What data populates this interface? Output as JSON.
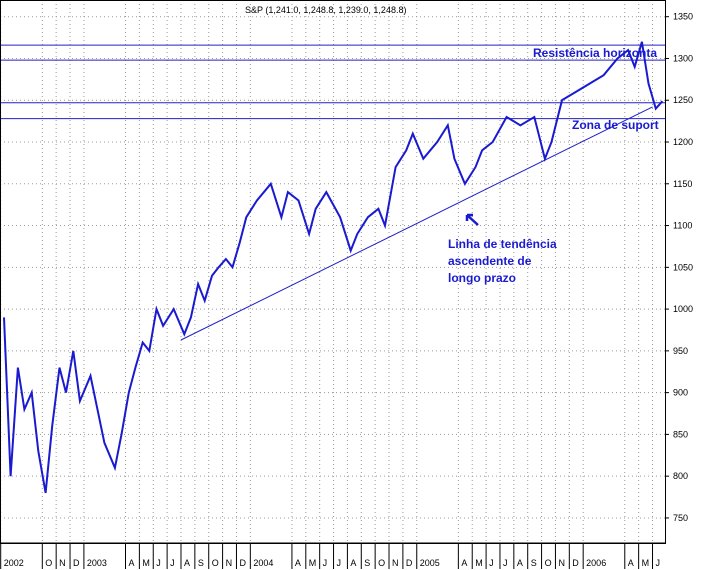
{
  "chart_data": {
    "type": "line",
    "title": "S&P (1,241.0, 1,248.8, 1,239.0, 1,248.8)",
    "ylim": [
      720,
      1370
    ],
    "y_ticks": [
      750,
      800,
      850,
      900,
      950,
      1000,
      1050,
      1100,
      1150,
      1200,
      1250,
      1300,
      1350
    ],
    "x_ticks": [
      {
        "label": "2002",
        "date": "2002-07"
      },
      {
        "label": "O",
        "date": "2002-10"
      },
      {
        "label": "N",
        "date": "2002-11"
      },
      {
        "label": "D",
        "date": "2002-12"
      },
      {
        "label": "2003",
        "date": "2003-01"
      },
      {
        "label": "A",
        "date": "2003-04"
      },
      {
        "label": "M",
        "date": "2003-05"
      },
      {
        "label": "J",
        "date": "2003-06"
      },
      {
        "label": "J",
        "date": "2003-07"
      },
      {
        "label": "A",
        "date": "2003-08"
      },
      {
        "label": "S",
        "date": "2003-09"
      },
      {
        "label": "O",
        "date": "2003-10"
      },
      {
        "label": "N",
        "date": "2003-11"
      },
      {
        "label": "D",
        "date": "2003-12"
      },
      {
        "label": "2004",
        "date": "2004-01"
      },
      {
        "label": "A",
        "date": "2004-04"
      },
      {
        "label": "M",
        "date": "2004-05"
      },
      {
        "label": "J",
        "date": "2004-06"
      },
      {
        "label": "J",
        "date": "2004-07"
      },
      {
        "label": "A",
        "date": "2004-08"
      },
      {
        "label": "S",
        "date": "2004-09"
      },
      {
        "label": "O",
        "date": "2004-10"
      },
      {
        "label": "N",
        "date": "2004-11"
      },
      {
        "label": "D",
        "date": "2004-12"
      },
      {
        "label": "2005",
        "date": "2005-01"
      },
      {
        "label": "A",
        "date": "2005-04"
      },
      {
        "label": "M",
        "date": "2005-05"
      },
      {
        "label": "J",
        "date": "2005-06"
      },
      {
        "label": "J",
        "date": "2005-07"
      },
      {
        "label": "A",
        "date": "2005-08"
      },
      {
        "label": "S",
        "date": "2005-09"
      },
      {
        "label": "O",
        "date": "2005-10"
      },
      {
        "label": "N",
        "date": "2005-11"
      },
      {
        "label": "D",
        "date": "2005-12"
      },
      {
        "label": "2006",
        "date": "2006-01"
      },
      {
        "label": "A",
        "date": "2006-04"
      },
      {
        "label": "M",
        "date": "2006-05"
      },
      {
        "label": "J",
        "date": "2006-06"
      }
    ],
    "series": [
      {
        "color": "#1a1ad0",
        "points": [
          [
            "2002-07",
            990
          ],
          [
            "2002-07",
            800
          ],
          [
            "2002-08",
            930
          ],
          [
            "2002-08",
            880
          ],
          [
            "2002-09",
            900
          ],
          [
            "2002-09",
            830
          ],
          [
            "2002-10",
            780
          ],
          [
            "2002-10",
            860
          ],
          [
            "2002-11",
            930
          ],
          [
            "2002-11",
            900
          ],
          [
            "2002-12",
            950
          ],
          [
            "2002-12",
            890
          ],
          [
            "2003-01",
            920
          ],
          [
            "2003-02",
            840
          ],
          [
            "2003-03",
            810
          ],
          [
            "2003-03",
            850
          ],
          [
            "2003-04",
            900
          ],
          [
            "2003-04",
            930
          ],
          [
            "2003-05",
            960
          ],
          [
            "2003-05",
            950
          ],
          [
            "2003-06",
            1000
          ],
          [
            "2003-06",
            980
          ],
          [
            "2003-07",
            1000
          ],
          [
            "2003-08",
            970
          ],
          [
            "2003-08",
            990
          ],
          [
            "2003-09",
            1030
          ],
          [
            "2003-09",
            1010
          ],
          [
            "2003-10",
            1040
          ],
          [
            "2003-10",
            1050
          ],
          [
            "2003-11",
            1060
          ],
          [
            "2003-11",
            1050
          ],
          [
            "2003-12",
            1080
          ],
          [
            "2003-12",
            1110
          ],
          [
            "2004-01",
            1130
          ],
          [
            "2004-02",
            1150
          ],
          [
            "2004-03",
            1110
          ],
          [
            "2004-03",
            1140
          ],
          [
            "2004-04",
            1130
          ],
          [
            "2004-05",
            1090
          ],
          [
            "2004-05",
            1120
          ],
          [
            "2004-06",
            1140
          ],
          [
            "2004-07",
            1110
          ],
          [
            "2004-08",
            1070
          ],
          [
            "2004-08",
            1090
          ],
          [
            "2004-09",
            1110
          ],
          [
            "2004-10",
            1120
          ],
          [
            "2004-10",
            1100
          ],
          [
            "2004-11",
            1170
          ],
          [
            "2004-12",
            1190
          ],
          [
            "2004-12",
            1210
          ],
          [
            "2005-01",
            1180
          ],
          [
            "2005-02",
            1200
          ],
          [
            "2005-03",
            1220
          ],
          [
            "2005-03",
            1180
          ],
          [
            "2005-04",
            1150
          ],
          [
            "2005-05",
            1170
          ],
          [
            "2005-05",
            1190
          ],
          [
            "2005-06",
            1200
          ],
          [
            "2005-07",
            1230
          ],
          [
            "2005-08",
            1220
          ],
          [
            "2005-09",
            1230
          ],
          [
            "2005-10",
            1180
          ],
          [
            "2005-10",
            1200
          ],
          [
            "2005-11",
            1250
          ],
          [
            "2005-12",
            1260
          ],
          [
            "2006-01",
            1270
          ],
          [
            "2006-02",
            1280
          ],
          [
            "2006-03",
            1300
          ],
          [
            "2006-04",
            1310
          ],
          [
            "2006-04",
            1290
          ],
          [
            "2006-05",
            1320
          ],
          [
            "2006-05",
            1270
          ],
          [
            "2006-06",
            1240
          ],
          [
            "2006-06",
            1248.8
          ]
        ]
      }
    ],
    "horizontal_lines": [
      {
        "name": "resistance-high",
        "value": 1316
      },
      {
        "name": "resistance-low",
        "value": 1298
      },
      {
        "name": "support-high",
        "value": 1247
      },
      {
        "name": "support-low",
        "value": 1228
      }
    ],
    "trend_line": {
      "from": [
        "2003-08",
        963
      ],
      "to": [
        "2006-06",
        1242
      ]
    },
    "annotations": {
      "resistance": "Resistência horizonta",
      "support": "Zona de suport",
      "trend_line_1": "Linha de tendência",
      "trend_line_2": "ascendente de",
      "trend_line_3": "longo prazo"
    },
    "grid": true,
    "colors": {
      "price": "#1a1ad0",
      "lines": "#2020c8",
      "text": "#1a1ad0",
      "grid": "#9a9a9a"
    }
  }
}
